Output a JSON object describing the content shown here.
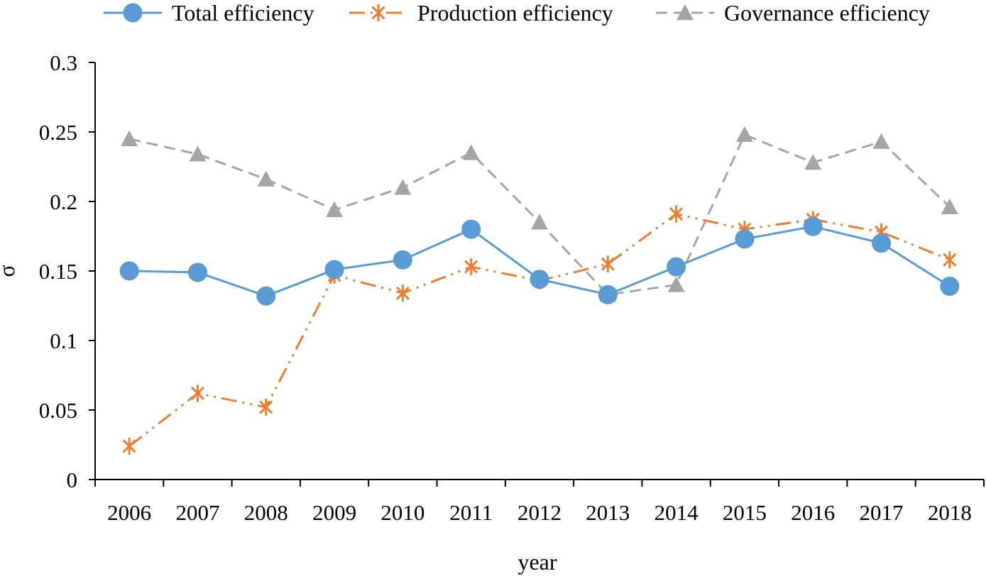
{
  "chart_data": {
    "type": "line",
    "title": "",
    "xlabel": "year",
    "ylabel": "σ",
    "ylim": [
      0,
      0.3
    ],
    "yticks": [
      0,
      0.05,
      0.1,
      0.15,
      0.2,
      0.25,
      0.3
    ],
    "ytick_labels": [
      "0",
      "0.05",
      "0.1",
      "0.15",
      "0.2",
      "0.25",
      "0.3"
    ],
    "grid": false,
    "legend_position": "top",
    "categories": [
      "2006",
      "2007",
      "2008",
      "2009",
      "2010",
      "2011",
      "2012",
      "2013",
      "2014",
      "2015",
      "2016",
      "2017",
      "2018"
    ],
    "series": [
      {
        "name": "Total efficiency",
        "color": "#5b9bd5",
        "marker": "circle",
        "line_style": "solid",
        "values": [
          0.15,
          0.149,
          0.132,
          0.151,
          0.158,
          0.18,
          0.144,
          0.133,
          0.153,
          0.173,
          0.182,
          0.17,
          0.139
        ]
      },
      {
        "name": "Production efficiency",
        "color": "#ed7d31",
        "marker": "asterisk",
        "line_style": "long-dash-dot-dot",
        "values": [
          0.024,
          0.062,
          0.052,
          0.147,
          0.134,
          0.153,
          0.143,
          0.155,
          0.191,
          0.18,
          0.187,
          0.178,
          0.158
        ]
      },
      {
        "name": "Governance efficiency",
        "color": "#a5a5a5",
        "marker": "triangle",
        "line_style": "dashed",
        "values": [
          0.245,
          0.234,
          0.216,
          0.194,
          0.21,
          0.235,
          0.185,
          0.133,
          0.14,
          0.248,
          0.228,
          0.243,
          0.196
        ]
      }
    ]
  }
}
